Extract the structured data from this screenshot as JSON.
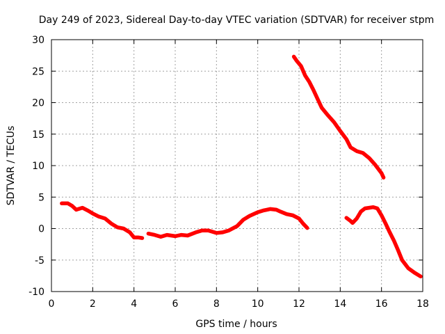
{
  "chart_data": {
    "type": "line",
    "title": "Day 249 of 2023, Sidereal Day-to-day VTEC variation (SDTVAR) for receiver stpm",
    "xlabel": "GPS time / hours",
    "ylabel": "SDTVAR / TECUs",
    "xlim": [
      0,
      18
    ],
    "ylim": [
      -10,
      30
    ],
    "xticks": [
      0,
      2,
      4,
      6,
      8,
      10,
      12,
      14,
      16,
      18
    ],
    "yticks": [
      -10,
      -5,
      0,
      5,
      10,
      15,
      20,
      25,
      30
    ],
    "grid": true,
    "line_color": "#ff0000",
    "series": [
      {
        "name": "segment-1",
        "x": [
          0.5,
          0.8,
          1.0,
          1.2,
          1.5,
          1.8,
          2.0,
          2.3,
          2.6,
          2.9,
          3.2,
          3.5,
          3.8,
          4.0,
          4.2,
          4.4
        ],
        "y": [
          4.0,
          4.0,
          3.6,
          3.0,
          3.3,
          2.8,
          2.4,
          1.9,
          1.6,
          0.8,
          0.2,
          0.0,
          -0.6,
          -1.4,
          -1.4,
          -1.5
        ]
      },
      {
        "name": "segment-2",
        "x": [
          4.7,
          5.0,
          5.3,
          5.6,
          6.0,
          6.3,
          6.6,
          7.0,
          7.3,
          7.6,
          8.0,
          8.3,
          8.6,
          9.0,
          9.3,
          9.6,
          10.0,
          10.3,
          10.6,
          10.9,
          11.1,
          11.4,
          11.7,
          12.0,
          12.2,
          12.4
        ],
        "y": [
          -0.8,
          -1.0,
          -1.3,
          -1.0,
          -1.2,
          -1.0,
          -1.1,
          -0.6,
          -0.3,
          -0.3,
          -0.7,
          -0.6,
          -0.3,
          0.4,
          1.4,
          2.0,
          2.6,
          2.9,
          3.1,
          3.0,
          2.7,
          2.3,
          2.1,
          1.6,
          0.8,
          0.1
        ]
      },
      {
        "name": "segment-3",
        "x": [
          11.75,
          11.9,
          12.1,
          12.3,
          12.5,
          12.7,
          12.9,
          13.1,
          13.4,
          13.7,
          14.0,
          14.3,
          14.5,
          14.8,
          15.1,
          15.4,
          15.7,
          16.0,
          16.1
        ],
        "y": [
          27.3,
          26.6,
          25.8,
          24.3,
          23.3,
          22.0,
          20.6,
          19.2,
          18.0,
          16.9,
          15.5,
          14.2,
          12.9,
          12.3,
          12.0,
          11.2,
          10.1,
          8.8,
          8.1
        ]
      },
      {
        "name": "segment-4",
        "x": [
          14.3,
          14.5,
          14.6,
          14.8,
          15.0,
          15.2,
          15.4,
          15.6,
          15.8,
          16.0,
          16.2,
          16.4,
          16.6,
          16.8,
          17.0,
          17.3,
          17.6,
          17.9
        ],
        "y": [
          1.7,
          1.2,
          0.9,
          1.6,
          2.7,
          3.2,
          3.3,
          3.4,
          3.2,
          2.1,
          0.8,
          -0.6,
          -1.9,
          -3.4,
          -5.0,
          -6.3,
          -7.0,
          -7.6
        ]
      }
    ]
  }
}
